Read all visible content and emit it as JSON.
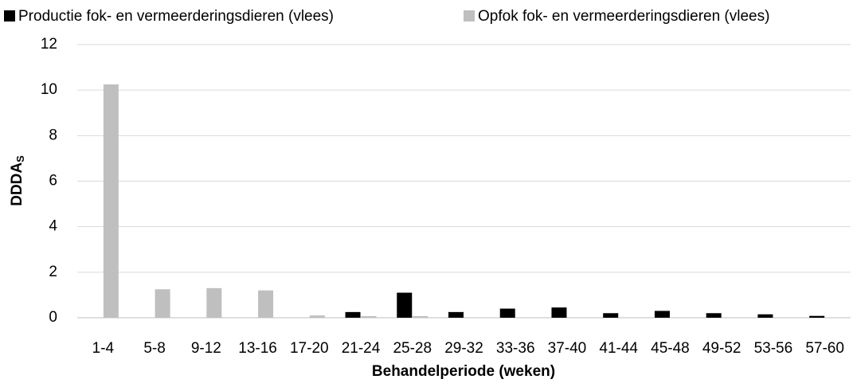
{
  "chart_data": {
    "type": "bar",
    "xlabel": "Behandelperiode (weken)",
    "ylabel": "DDDA",
    "ylabel_subscript": "S",
    "categories": [
      "1-4",
      "5-8",
      "9-12",
      "13-16",
      "17-20",
      "21-24",
      "25-28",
      "29-32",
      "33-36",
      "37-40",
      "41-44",
      "45-48",
      "49-52",
      "53-56",
      "57-60"
    ],
    "series": [
      {
        "name": "Productie fok- en vermeerderingsdieren (vlees)",
        "color": "#000000",
        "values": [
          0,
          0,
          0,
          0,
          0,
          0.25,
          1.1,
          0.25,
          0.4,
          0.45,
          0.2,
          0.3,
          0.2,
          0.15,
          0.08
        ]
      },
      {
        "name": "Opfok fok- en vermeerderingsdieren (vlees)",
        "color": "#bfbfbf",
        "values": [
          10.25,
          1.25,
          1.3,
          1.2,
          0.1,
          0.07,
          0.07,
          0,
          0,
          0,
          0,
          0,
          0,
          0,
          0
        ]
      }
    ],
    "ylim": [
      0,
      12
    ],
    "yticks": [
      0,
      2,
      4,
      6,
      8,
      10,
      12
    ],
    "grid": true,
    "legend": "top"
  }
}
